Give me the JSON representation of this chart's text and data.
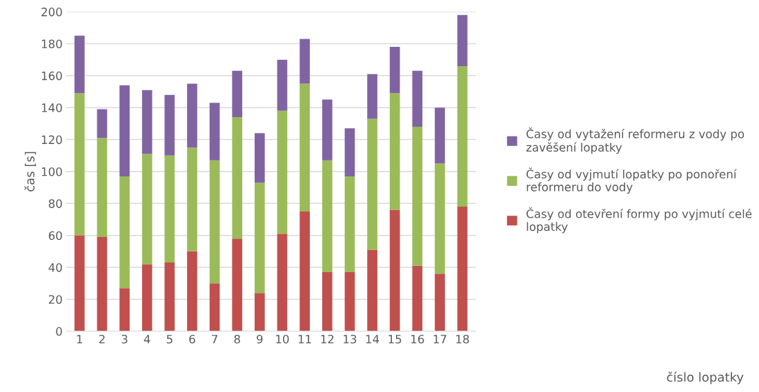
{
  "chart_data": {
    "type": "bar",
    "stacked": true,
    "annotations": [
      "číslo lopatky"
    ],
    "ylabel": "čas [s]",
    "categories": [
      "1",
      "2",
      "3",
      "4",
      "5",
      "6",
      "7",
      "8",
      "9",
      "10",
      "11",
      "12",
      "13",
      "14",
      "15",
      "16",
      "17",
      "18"
    ],
    "series": [
      {
        "name": "Časy od otevření formy po vyjmutí celé lopatky",
        "color": "#c0504d",
        "values": [
          60,
          59,
          27,
          42,
          43,
          50,
          30,
          58,
          24,
          61,
          75,
          37,
          37,
          51,
          76,
          41,
          36,
          78
        ]
      },
      {
        "name": "Časy od vyjmutí lopatky po ponoření reformeru do vody",
        "color": "#9bbb59",
        "values": [
          89,
          62,
          70,
          69,
          67,
          65,
          77,
          76,
          69,
          77,
          80,
          70,
          60,
          82,
          73,
          87,
          69,
          88
        ]
      },
      {
        "name": "Časy od vytažení reformeru z vody po zavěšení lopatky",
        "color": "#8064a2",
        "values": [
          36,
          18,
          57,
          40,
          38,
          40,
          36,
          29,
          31,
          32,
          28,
          38,
          30,
          28,
          29,
          35,
          35,
          32
        ]
      }
    ],
    "ylim": [
      0,
      200
    ],
    "yticks": [
      0,
      20,
      40,
      60,
      80,
      100,
      120,
      140,
      160,
      180,
      200
    ],
    "grid": "y",
    "legend": "right"
  }
}
